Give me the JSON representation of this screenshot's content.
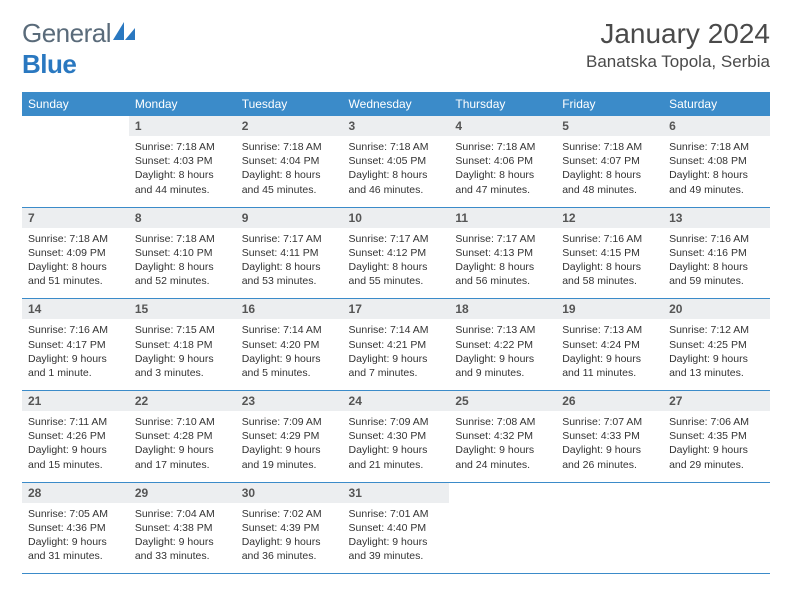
{
  "brand": {
    "name_gray": "General",
    "name_blue": "Blue"
  },
  "title": "January 2024",
  "location": "Banatska Topola, Serbia",
  "colors": {
    "header_bg": "#3b8bc9",
    "header_fg": "#ffffff",
    "daynum_bg": "#eceef0",
    "rule": "#3b8bc9",
    "brand_gray": "#5a6b7a",
    "brand_blue": "#2a78c0"
  },
  "days_of_week": [
    "Sunday",
    "Monday",
    "Tuesday",
    "Wednesday",
    "Thursday",
    "Friday",
    "Saturday"
  ],
  "weeks": [
    [
      {
        "n": "",
        "t": ""
      },
      {
        "n": "1",
        "t": "Sunrise: 7:18 AM\nSunset: 4:03 PM\nDaylight: 8 hours and 44 minutes."
      },
      {
        "n": "2",
        "t": "Sunrise: 7:18 AM\nSunset: 4:04 PM\nDaylight: 8 hours and 45 minutes."
      },
      {
        "n": "3",
        "t": "Sunrise: 7:18 AM\nSunset: 4:05 PM\nDaylight: 8 hours and 46 minutes."
      },
      {
        "n": "4",
        "t": "Sunrise: 7:18 AM\nSunset: 4:06 PM\nDaylight: 8 hours and 47 minutes."
      },
      {
        "n": "5",
        "t": "Sunrise: 7:18 AM\nSunset: 4:07 PM\nDaylight: 8 hours and 48 minutes."
      },
      {
        "n": "6",
        "t": "Sunrise: 7:18 AM\nSunset: 4:08 PM\nDaylight: 8 hours and 49 minutes."
      }
    ],
    [
      {
        "n": "7",
        "t": "Sunrise: 7:18 AM\nSunset: 4:09 PM\nDaylight: 8 hours and 51 minutes."
      },
      {
        "n": "8",
        "t": "Sunrise: 7:18 AM\nSunset: 4:10 PM\nDaylight: 8 hours and 52 minutes."
      },
      {
        "n": "9",
        "t": "Sunrise: 7:17 AM\nSunset: 4:11 PM\nDaylight: 8 hours and 53 minutes."
      },
      {
        "n": "10",
        "t": "Sunrise: 7:17 AM\nSunset: 4:12 PM\nDaylight: 8 hours and 55 minutes."
      },
      {
        "n": "11",
        "t": "Sunrise: 7:17 AM\nSunset: 4:13 PM\nDaylight: 8 hours and 56 minutes."
      },
      {
        "n": "12",
        "t": "Sunrise: 7:16 AM\nSunset: 4:15 PM\nDaylight: 8 hours and 58 minutes."
      },
      {
        "n": "13",
        "t": "Sunrise: 7:16 AM\nSunset: 4:16 PM\nDaylight: 8 hours and 59 minutes."
      }
    ],
    [
      {
        "n": "14",
        "t": "Sunrise: 7:16 AM\nSunset: 4:17 PM\nDaylight: 9 hours and 1 minute."
      },
      {
        "n": "15",
        "t": "Sunrise: 7:15 AM\nSunset: 4:18 PM\nDaylight: 9 hours and 3 minutes."
      },
      {
        "n": "16",
        "t": "Sunrise: 7:14 AM\nSunset: 4:20 PM\nDaylight: 9 hours and 5 minutes."
      },
      {
        "n": "17",
        "t": "Sunrise: 7:14 AM\nSunset: 4:21 PM\nDaylight: 9 hours and 7 minutes."
      },
      {
        "n": "18",
        "t": "Sunrise: 7:13 AM\nSunset: 4:22 PM\nDaylight: 9 hours and 9 minutes."
      },
      {
        "n": "19",
        "t": "Sunrise: 7:13 AM\nSunset: 4:24 PM\nDaylight: 9 hours and 11 minutes."
      },
      {
        "n": "20",
        "t": "Sunrise: 7:12 AM\nSunset: 4:25 PM\nDaylight: 9 hours and 13 minutes."
      }
    ],
    [
      {
        "n": "21",
        "t": "Sunrise: 7:11 AM\nSunset: 4:26 PM\nDaylight: 9 hours and 15 minutes."
      },
      {
        "n": "22",
        "t": "Sunrise: 7:10 AM\nSunset: 4:28 PM\nDaylight: 9 hours and 17 minutes."
      },
      {
        "n": "23",
        "t": "Sunrise: 7:09 AM\nSunset: 4:29 PM\nDaylight: 9 hours and 19 minutes."
      },
      {
        "n": "24",
        "t": "Sunrise: 7:09 AM\nSunset: 4:30 PM\nDaylight: 9 hours and 21 minutes."
      },
      {
        "n": "25",
        "t": "Sunrise: 7:08 AM\nSunset: 4:32 PM\nDaylight: 9 hours and 24 minutes."
      },
      {
        "n": "26",
        "t": "Sunrise: 7:07 AM\nSunset: 4:33 PM\nDaylight: 9 hours and 26 minutes."
      },
      {
        "n": "27",
        "t": "Sunrise: 7:06 AM\nSunset: 4:35 PM\nDaylight: 9 hours and 29 minutes."
      }
    ],
    [
      {
        "n": "28",
        "t": "Sunrise: 7:05 AM\nSunset: 4:36 PM\nDaylight: 9 hours and 31 minutes."
      },
      {
        "n": "29",
        "t": "Sunrise: 7:04 AM\nSunset: 4:38 PM\nDaylight: 9 hours and 33 minutes."
      },
      {
        "n": "30",
        "t": "Sunrise: 7:02 AM\nSunset: 4:39 PM\nDaylight: 9 hours and 36 minutes."
      },
      {
        "n": "31",
        "t": "Sunrise: 7:01 AM\nSunset: 4:40 PM\nDaylight: 9 hours and 39 minutes."
      },
      {
        "n": "",
        "t": ""
      },
      {
        "n": "",
        "t": ""
      },
      {
        "n": "",
        "t": ""
      }
    ]
  ]
}
